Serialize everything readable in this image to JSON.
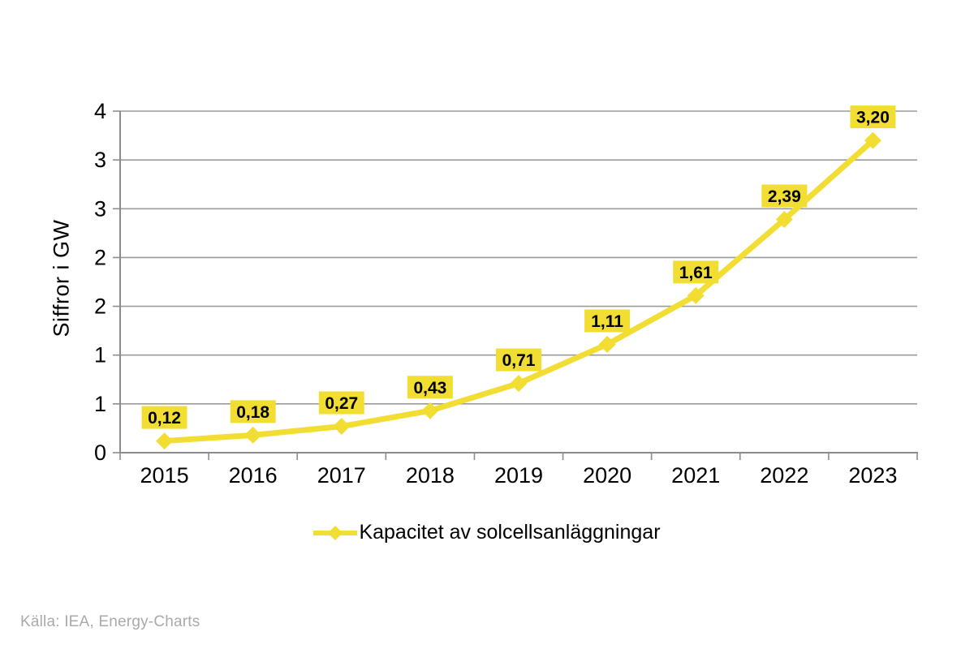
{
  "chart_data": {
    "type": "line",
    "title": "",
    "ylabel": "Siffror i GW",
    "xlabel": "",
    "categories": [
      "2015",
      "2016",
      "2017",
      "2018",
      "2019",
      "2020",
      "2021",
      "2022",
      "2023"
    ],
    "series": [
      {
        "name": "Kapacitet av solcellsanläggningar",
        "values": [
          0.12,
          0.18,
          0.27,
          0.43,
          0.71,
          1.11,
          1.61,
          2.39,
          3.2
        ],
        "point_labels": [
          "0,12",
          "0,18",
          "0,27",
          "0,43",
          "0,71",
          "1,11",
          "1,61",
          "2,39",
          "3,20"
        ],
        "marker": "diamond"
      }
    ],
    "y_axis": {
      "min": 0,
      "max": 3.5,
      "tick_step": 0.5,
      "tick_labels": [
        "0",
        "1",
        "1",
        "2",
        "2",
        "3",
        "3",
        "4"
      ]
    },
    "grid": true,
    "legend_position": "bottom"
  },
  "footer": {
    "source": "Källa: IEA, Energy-Charts"
  },
  "colors": {
    "series_yellow": "#F2DE32",
    "grid_gray": "#9B9B9B",
    "axis_gray": "#8C8C8C",
    "label_text": "#000000",
    "source_gray": "#A9A9A9"
  }
}
